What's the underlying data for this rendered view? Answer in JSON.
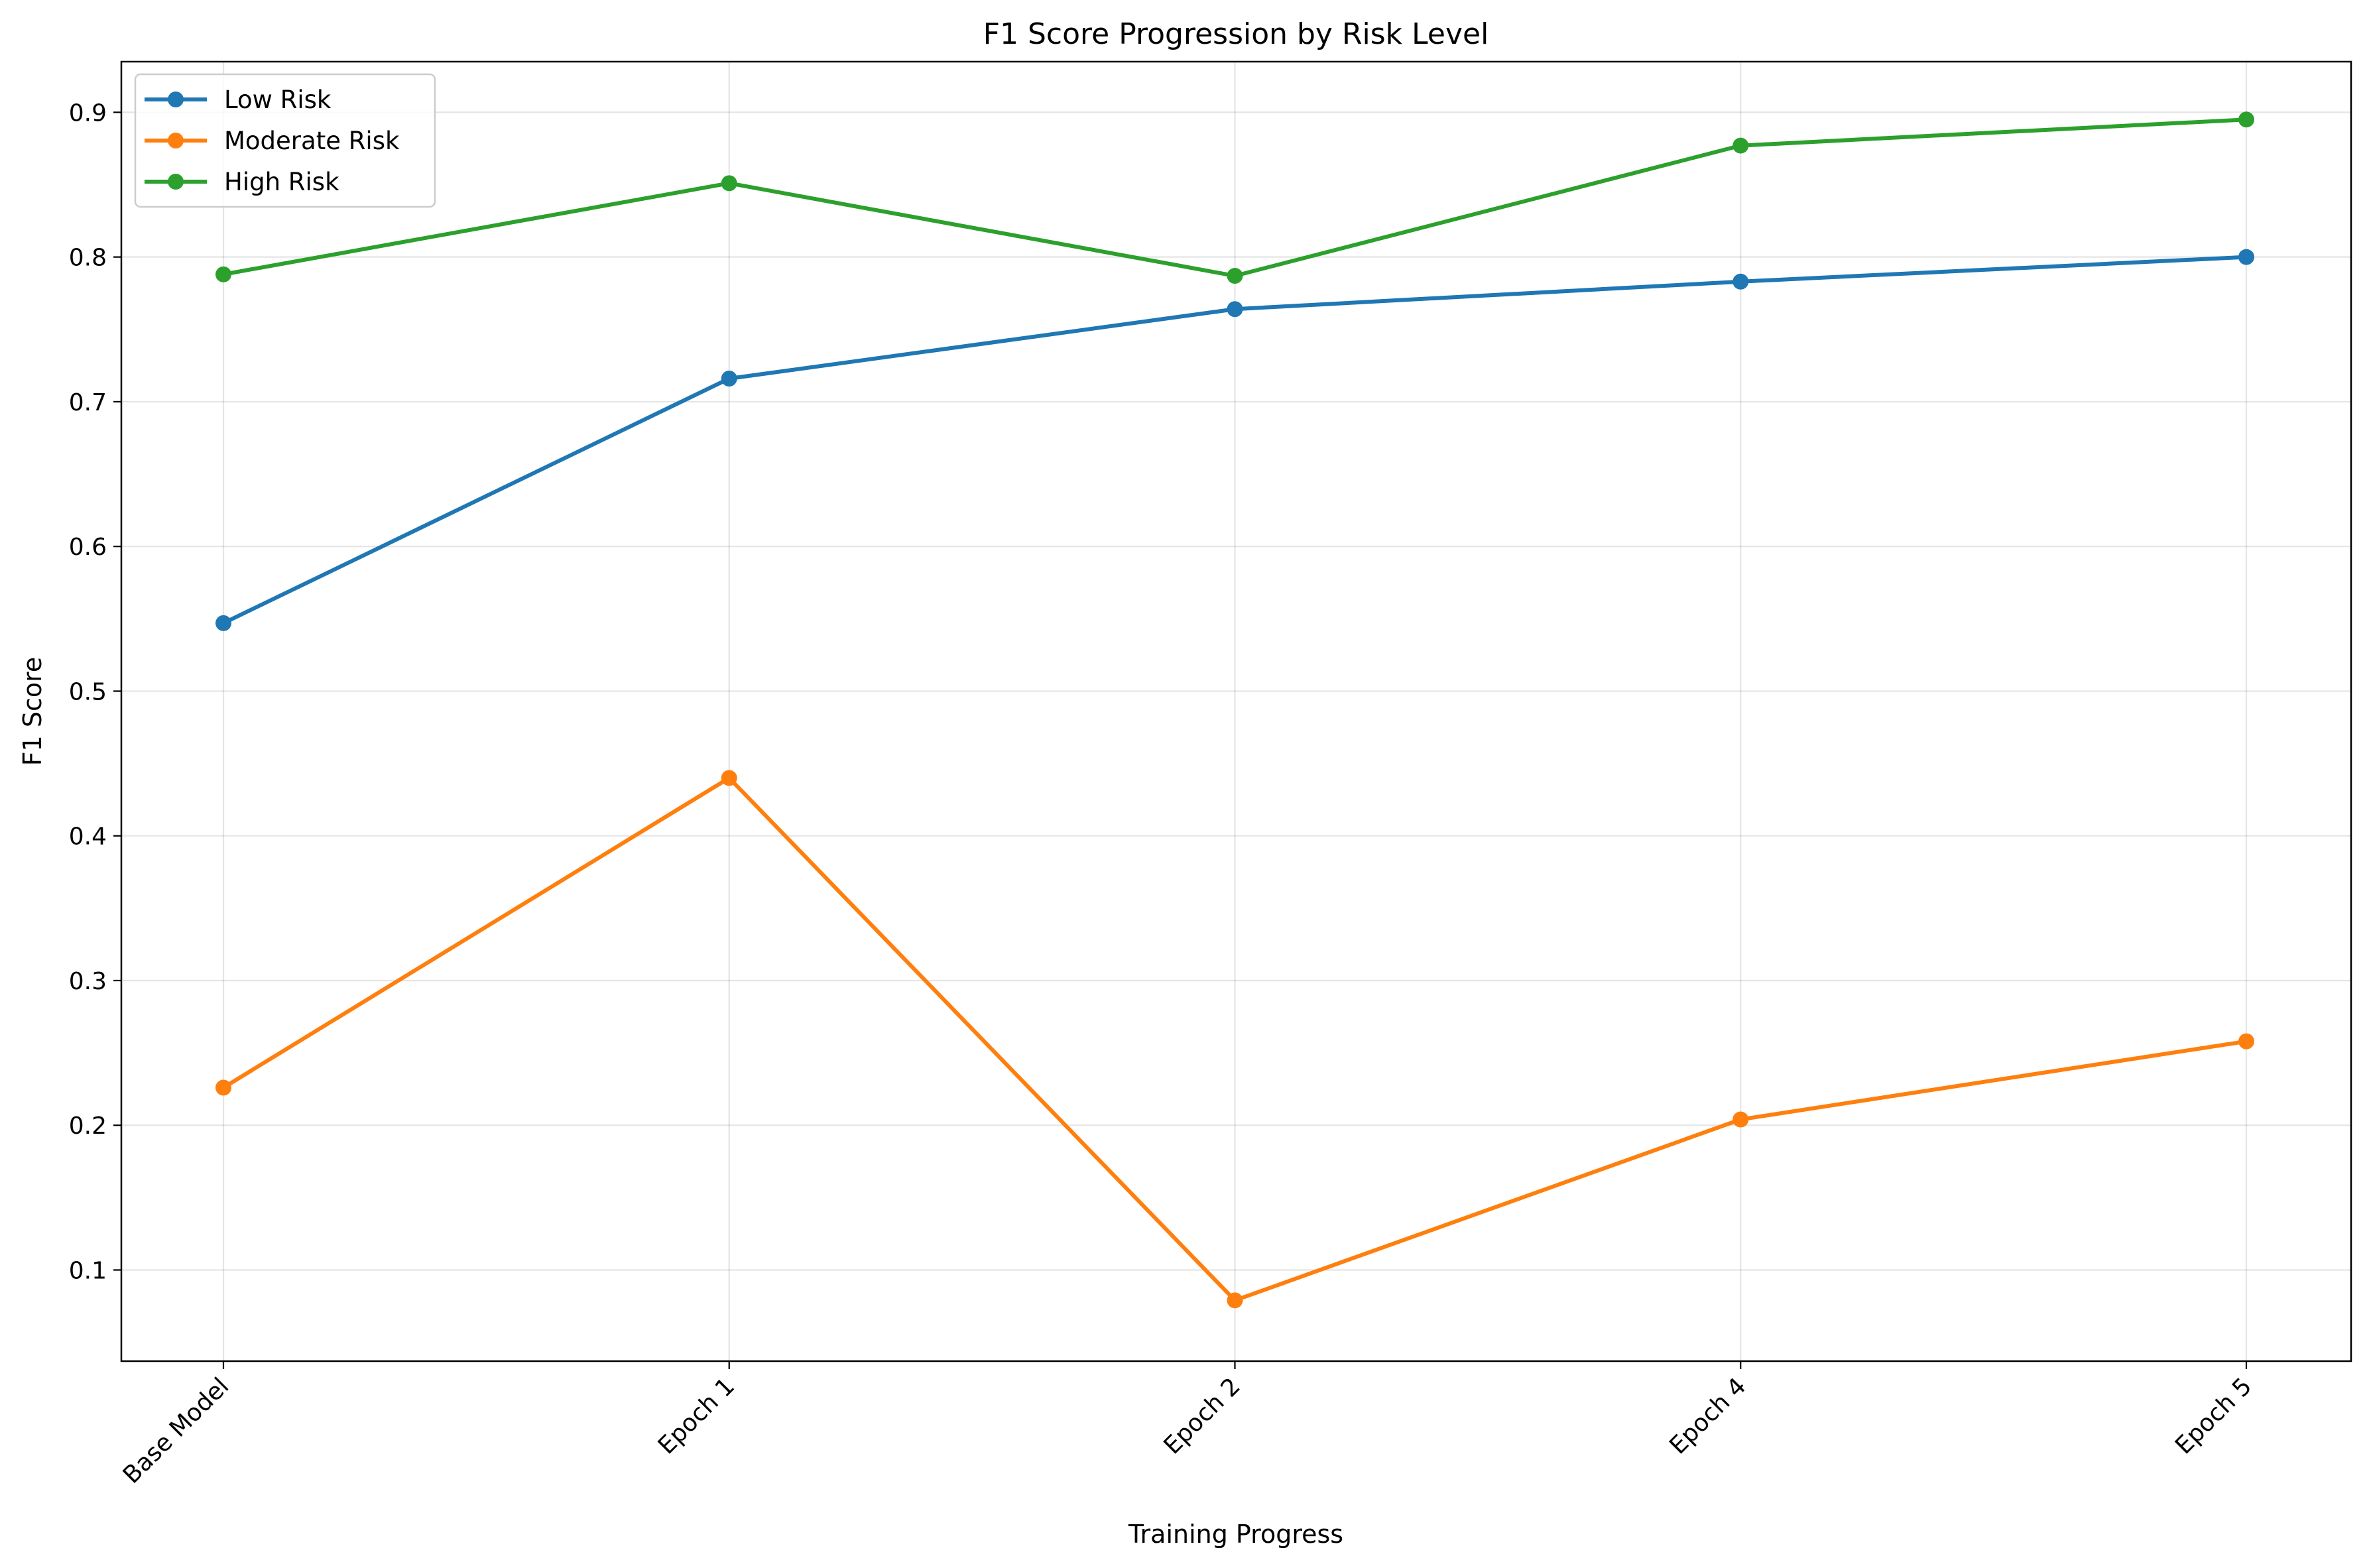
{
  "chart_data": {
    "type": "line",
    "title": "F1 Score Progression by Risk Level",
    "xlabel": "Training Progress",
    "ylabel": "F1 Score",
    "categories": [
      "Base Model",
      "Epoch 1",
      "Epoch 2",
      "Epoch 4",
      "Epoch 5"
    ],
    "ylim": [
      0.037,
      0.935
    ],
    "yticks": [
      0.1,
      0.2,
      0.3,
      0.4,
      0.5,
      0.6,
      0.7,
      0.8,
      0.9
    ],
    "ytick_labels": [
      "0.1",
      "0.2",
      "0.3",
      "0.4",
      "0.5",
      "0.6",
      "0.7",
      "0.8",
      "0.9"
    ],
    "grid": true,
    "legend_position": "top-left",
    "marker": "circle",
    "series": [
      {
        "name": "Low Risk",
        "color": "#1f77b4",
        "values": [
          0.547,
          0.716,
          0.764,
          0.783,
          0.8
        ]
      },
      {
        "name": "Moderate Risk",
        "color": "#ff7f0e",
        "values": [
          0.226,
          0.44,
          0.079,
          0.204,
          0.258
        ]
      },
      {
        "name": "High Risk",
        "color": "#2ca02c",
        "values": [
          0.788,
          0.851,
          0.787,
          0.877,
          0.895
        ]
      }
    ]
  }
}
